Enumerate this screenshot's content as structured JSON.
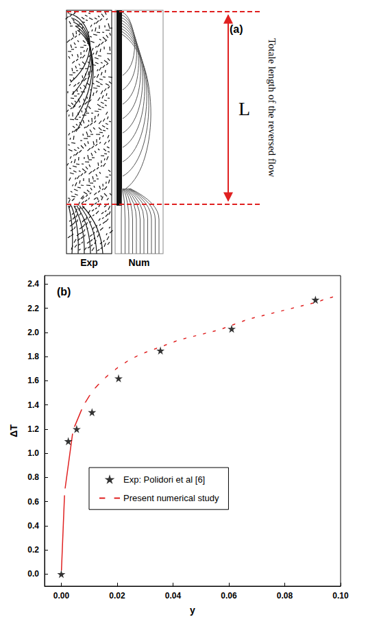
{
  "panel_a": {
    "label": "(a)",
    "images": [
      "Exp",
      "Num"
    ],
    "length_symbol": "L",
    "length_caption": "Totale length of the reversed flow"
  },
  "chart_data": {
    "type": "line",
    "title": "(b)",
    "x_label": "y",
    "y_label": "ΔT",
    "xlim": [
      -0.006,
      0.1
    ],
    "ylim": [
      -0.1,
      2.47
    ],
    "xticks": [
      {
        "value": 0,
        "label": "0.00"
      },
      {
        "value": 0.02,
        "label": "0.02"
      },
      {
        "value": 0.04,
        "label": "0.04"
      },
      {
        "value": 0.06,
        "label": "0.06"
      },
      {
        "value": 0.08,
        "label": "0.08"
      },
      {
        "value": 0.1,
        "label": "0.10"
      }
    ],
    "yticks": [
      {
        "value": 0,
        "label": "0.0"
      },
      {
        "value": 0.2,
        "label": "0.2"
      },
      {
        "value": 0.4,
        "label": "0.4"
      },
      {
        "value": 0.6,
        "label": "0.6"
      },
      {
        "value": 0.8,
        "label": "0.8"
      },
      {
        "value": 1,
        "label": "1.0"
      },
      {
        "value": 1.2,
        "label": "1.2"
      },
      {
        "value": 1.4,
        "label": "1.4"
      },
      {
        "value": 1.6,
        "label": "1.6"
      },
      {
        "value": 1.8,
        "label": "1.8"
      },
      {
        "value": 2,
        "label": "2.0"
      },
      {
        "value": 2.2,
        "label": "2.2"
      },
      {
        "value": 2.4,
        "label": "2.4"
      }
    ],
    "grid": false,
    "legend": "lower center",
    "series": [
      {
        "name": "Exp: Polidori et al [6]",
        "type": "scatter",
        "color": "#000000",
        "marker": "star",
        "x": [
          0,
          0.0025,
          0.0055,
          0.011,
          0.0205,
          0.0355,
          0.061,
          0.091
        ],
        "values": [
          0,
          1.1,
          1.2,
          1.34,
          1.62,
          1.85,
          2.03,
          2.27
        ]
      },
      {
        "name": "Present numerical study",
        "type": "line",
        "color": "#e02020",
        "marker": "square",
        "line_style": "solid",
        "x": [
          0,
          0.0012,
          0.0042,
          0.0078,
          0.011,
          0.0145,
          0.018,
          0.0215,
          0.025,
          0.0285,
          0.032,
          0.0355,
          0.039,
          0.0425,
          0.046,
          0.0495,
          0.053,
          0.0565,
          0.06,
          0.0635,
          0.067,
          0.0705,
          0.074,
          0.0775,
          0.081,
          0.0845,
          0.088,
          0.0915,
          0.095,
          0.0985
        ],
        "values": [
          0,
          0.68,
          1.19,
          1.39,
          1.51,
          1.6,
          1.67,
          1.73,
          1.78,
          1.82,
          1.85,
          1.88,
          1.91,
          1.94,
          1.96,
          1.98,
          2.0,
          2.02,
          2.05,
          2.08,
          2.11,
          2.13,
          2.15,
          2.17,
          2.19,
          2.21,
          2.23,
          2.25,
          2.28,
          2.3
        ]
      }
    ]
  }
}
